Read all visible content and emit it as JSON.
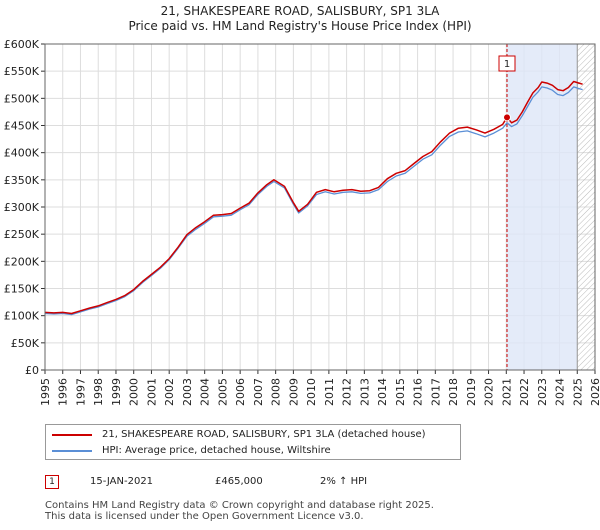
{
  "chart_data": {
    "type": "line",
    "title": "21, SHAKESPEARE ROAD, SALISBURY, SP1 3LA",
    "subtitle": "Price paid vs. HM Land Registry's House Price Index (HPI)",
    "xlim": [
      1995,
      2026
    ],
    "ylim": [
      0,
      600000
    ],
    "x_ticks": [
      "1995",
      "1996",
      "1997",
      "1998",
      "1999",
      "2000",
      "2001",
      "2002",
      "2003",
      "2004",
      "2005",
      "2006",
      "2007",
      "2008",
      "2009",
      "2010",
      "2011",
      "2012",
      "2013",
      "2014",
      "2015",
      "2016",
      "2017",
      "2018",
      "2019",
      "2020",
      "2021",
      "2022",
      "2023",
      "2024",
      "2025",
      "2026"
    ],
    "y_ticks": [
      {
        "value": 0,
        "label": "£0"
      },
      {
        "value": 50000,
        "label": "£50K"
      },
      {
        "value": 100000,
        "label": "£100K"
      },
      {
        "value": 150000,
        "label": "£150K"
      },
      {
        "value": 200000,
        "label": "£200K"
      },
      {
        "value": 250000,
        "label": "£250K"
      },
      {
        "value": 300000,
        "label": "£300K"
      },
      {
        "value": 350000,
        "label": "£350K"
      },
      {
        "value": 400000,
        "label": "£400K"
      },
      {
        "value": 450000,
        "label": "£450K"
      },
      {
        "value": 500000,
        "label": "£500K"
      },
      {
        "value": 550000,
        "label": "£550K"
      },
      {
        "value": 600000,
        "label": "£600K"
      }
    ],
    "series": [
      {
        "name": "21, SHAKESPEARE ROAD, SALISBURY, SP1 3LA (detached house)",
        "color": "#cc0000",
        "points": [
          [
            1995.0,
            106000
          ],
          [
            1995.5,
            105000
          ],
          [
            1996.0,
            106000
          ],
          [
            1996.5,
            104000
          ],
          [
            1997.0,
            109000
          ],
          [
            1997.5,
            114000
          ],
          [
            1998.0,
            118000
          ],
          [
            1998.5,
            124000
          ],
          [
            1999.0,
            130000
          ],
          [
            1999.5,
            137000
          ],
          [
            2000.0,
            148000
          ],
          [
            2000.5,
            163000
          ],
          [
            2001.0,
            176000
          ],
          [
            2001.5,
            189000
          ],
          [
            2002.0,
            205000
          ],
          [
            2002.5,
            226000
          ],
          [
            2003.0,
            249000
          ],
          [
            2003.5,
            262000
          ],
          [
            2004.0,
            273000
          ],
          [
            2004.5,
            285000
          ],
          [
            2005.0,
            286000
          ],
          [
            2005.5,
            288000
          ],
          [
            2006.0,
            298000
          ],
          [
            2006.5,
            307000
          ],
          [
            2007.0,
            326000
          ],
          [
            2007.5,
            341000
          ],
          [
            2007.9,
            350000
          ],
          [
            2008.5,
            338000
          ],
          [
            2009.0,
            308000
          ],
          [
            2009.3,
            292000
          ],
          [
            2009.8,
            305000
          ],
          [
            2010.3,
            327000
          ],
          [
            2010.8,
            332000
          ],
          [
            2011.3,
            328000
          ],
          [
            2011.8,
            331000
          ],
          [
            2012.3,
            332000
          ],
          [
            2012.8,
            329000
          ],
          [
            2013.3,
            330000
          ],
          [
            2013.8,
            336000
          ],
          [
            2014.3,
            352000
          ],
          [
            2014.8,
            362000
          ],
          [
            2015.3,
            367000
          ],
          [
            2015.8,
            380000
          ],
          [
            2016.3,
            393000
          ],
          [
            2016.8,
            402000
          ],
          [
            2017.3,
            420000
          ],
          [
            2017.8,
            436000
          ],
          [
            2018.3,
            445000
          ],
          [
            2018.8,
            447000
          ],
          [
            2019.3,
            442000
          ],
          [
            2019.8,
            436000
          ],
          [
            2020.3,
            443000
          ],
          [
            2020.8,
            452000
          ],
          [
            2021.04,
            465000
          ],
          [
            2021.3,
            455000
          ],
          [
            2021.6,
            460000
          ],
          [
            2021.9,
            475000
          ],
          [
            2022.2,
            493000
          ],
          [
            2022.5,
            510000
          ],
          [
            2022.8,
            520000
          ],
          [
            2023.0,
            530000
          ],
          [
            2023.3,
            528000
          ],
          [
            2023.6,
            524000
          ],
          [
            2023.9,
            516000
          ],
          [
            2024.2,
            514000
          ],
          [
            2024.5,
            520000
          ],
          [
            2024.8,
            531000
          ],
          [
            2025.1,
            528000
          ],
          [
            2025.3,
            526000
          ]
        ]
      },
      {
        "name": "HPI: Average price, detached house, Wiltshire",
        "color": "#5b8fd6",
        "points": [
          [
            1995.0,
            104000
          ],
          [
            1995.5,
            103000
          ],
          [
            1996.0,
            104000
          ],
          [
            1996.5,
            102000
          ],
          [
            1997.0,
            107000
          ],
          [
            1997.5,
            112000
          ],
          [
            1998.0,
            116000
          ],
          [
            1998.5,
            122000
          ],
          [
            1999.0,
            128000
          ],
          [
            1999.5,
            135000
          ],
          [
            2000.0,
            146000
          ],
          [
            2000.5,
            161000
          ],
          [
            2001.0,
            174000
          ],
          [
            2001.5,
            187000
          ],
          [
            2002.0,
            203000
          ],
          [
            2002.5,
            224000
          ],
          [
            2003.0,
            246000
          ],
          [
            2003.5,
            259000
          ],
          [
            2004.0,
            270000
          ],
          [
            2004.5,
            282000
          ],
          [
            2005.0,
            283000
          ],
          [
            2005.5,
            285000
          ],
          [
            2006.0,
            295000
          ],
          [
            2006.5,
            304000
          ],
          [
            2007.0,
            323000
          ],
          [
            2007.5,
            338000
          ],
          [
            2007.9,
            347000
          ],
          [
            2008.5,
            335000
          ],
          [
            2009.0,
            305000
          ],
          [
            2009.3,
            289000
          ],
          [
            2009.8,
            302000
          ],
          [
            2010.3,
            323000
          ],
          [
            2010.8,
            328000
          ],
          [
            2011.3,
            324000
          ],
          [
            2011.8,
            327000
          ],
          [
            2012.3,
            328000
          ],
          [
            2012.8,
            325000
          ],
          [
            2013.3,
            326000
          ],
          [
            2013.8,
            332000
          ],
          [
            2014.3,
            347000
          ],
          [
            2014.8,
            357000
          ],
          [
            2015.3,
            362000
          ],
          [
            2015.8,
            375000
          ],
          [
            2016.3,
            388000
          ],
          [
            2016.8,
            396000
          ],
          [
            2017.3,
            414000
          ],
          [
            2017.8,
            430000
          ],
          [
            2018.3,
            438000
          ],
          [
            2018.8,
            440000
          ],
          [
            2019.3,
            435000
          ],
          [
            2019.8,
            429000
          ],
          [
            2020.3,
            436000
          ],
          [
            2020.8,
            445000
          ],
          [
            2021.04,
            455000
          ],
          [
            2021.3,
            448000
          ],
          [
            2021.6,
            453000
          ],
          [
            2021.9,
            468000
          ],
          [
            2022.2,
            485000
          ],
          [
            2022.5,
            502000
          ],
          [
            2022.8,
            512000
          ],
          [
            2023.0,
            521000
          ],
          [
            2023.3,
            519000
          ],
          [
            2023.6,
            515000
          ],
          [
            2023.9,
            507000
          ],
          [
            2024.2,
            505000
          ],
          [
            2024.5,
            511000
          ],
          [
            2024.8,
            521000
          ],
          [
            2025.1,
            518000
          ],
          [
            2025.3,
            516000
          ]
        ]
      }
    ],
    "annotations": [
      {
        "label": "1",
        "x": 2021.04,
        "y": 465000,
        "marker_color": "#cc0000",
        "vline_color": "#cc0000",
        "shade_from": 2021.04,
        "shade_to": 2025.0,
        "shade_color": "#dde6f7"
      }
    ],
    "hatch_region": {
      "from": 2025.0,
      "to": 2026.0
    }
  },
  "legend": {
    "property_label": "21, SHAKESPEARE ROAD, SALISBURY, SP1 3LA (detached house)",
    "hpi_label": "HPI: Average price, detached house, Wiltshire"
  },
  "transaction": {
    "number": "1",
    "date": "15-JAN-2021",
    "price": "£465,000",
    "hpi_change": "2% ↑ HPI"
  },
  "footer": {
    "line1": "Contains HM Land Registry data © Crown copyright and database right 2025.",
    "line2": "This data is licensed under the Open Government Licence v3.0."
  },
  "colors": {
    "property": "#cc0000",
    "hpi": "#5b8fd6",
    "grid": "#dddddd",
    "shade": "#dde6f7"
  }
}
